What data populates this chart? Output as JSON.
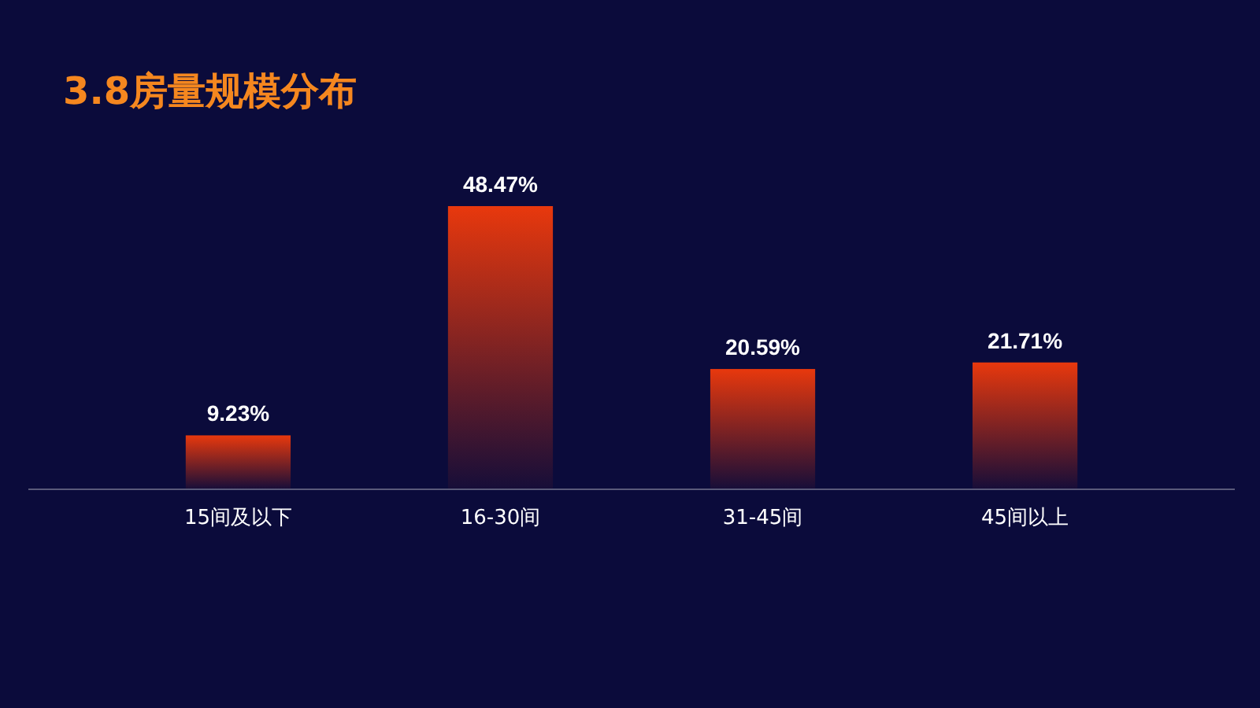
{
  "chart_data": {
    "type": "bar",
    "title": "3.8房量规模分布",
    "categories": [
      "15间及以下",
      "16-30间",
      "31-45间",
      "45间以上"
    ],
    "values": [
      9.23,
      48.47,
      20.59,
      21.71
    ],
    "value_labels": [
      "9.23%",
      "48.47%",
      "20.59%",
      "21.71%"
    ],
    "color": "#e8380d"
  }
}
